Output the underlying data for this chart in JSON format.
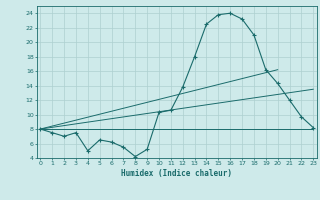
{
  "xlabel": "Humidex (Indice chaleur)",
  "ylabel": "",
  "bg_color": "#ceeaea",
  "grid_color": "#aed0d0",
  "line_color": "#1a6b6b",
  "xlim": [
    0,
    23
  ],
  "ylim": [
    4,
    25
  ],
  "yticks": [
    4,
    6,
    8,
    10,
    12,
    14,
    16,
    18,
    20,
    22,
    24
  ],
  "xticks": [
    0,
    1,
    2,
    3,
    4,
    5,
    6,
    7,
    8,
    9,
    10,
    11,
    12,
    13,
    14,
    15,
    16,
    17,
    18,
    19,
    20,
    21,
    22,
    23
  ],
  "series1_x": [
    0,
    1,
    2,
    3,
    4,
    5,
    6,
    7,
    8,
    9,
    10,
    11,
    12,
    13,
    14,
    15,
    16,
    17,
    18,
    19,
    20,
    21,
    22,
    23
  ],
  "series1_y": [
    8.0,
    7.5,
    7.0,
    7.5,
    5.0,
    6.5,
    6.2,
    5.5,
    4.2,
    5.2,
    10.3,
    10.6,
    13.8,
    18.0,
    22.5,
    23.8,
    24.0,
    23.2,
    21.0,
    16.2,
    14.3,
    12.0,
    9.7,
    8.2
  ],
  "series2_x": [
    0,
    23
  ],
  "series2_y": [
    8.0,
    8.0
  ],
  "series3_x": [
    0,
    23
  ],
  "series3_y": [
    8.0,
    13.5
  ],
  "series4_x": [
    0,
    20
  ],
  "series4_y": [
    8.0,
    16.2
  ]
}
